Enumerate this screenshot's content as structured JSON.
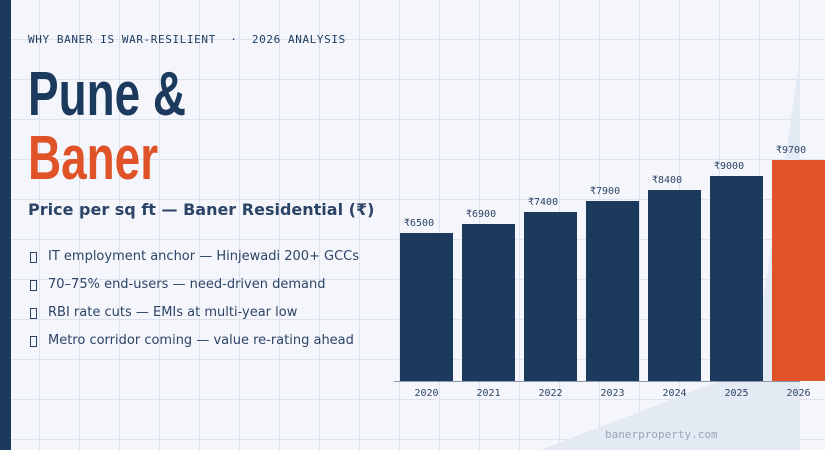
{
  "header": {
    "kicker": "WHY BANER IS WAR-RESILIENT  ·  2026 ANALYSIS",
    "title_line1": "Pune &",
    "title_line2": "Baner"
  },
  "subtitle": "Price per sq ft — Baner Residential (₹)",
  "bullets": [
    {
      "icon": "bullet-icon",
      "text": "IT employment anchor — Hinjewadi 200+ GCCs"
    },
    {
      "icon": "bullet-icon",
      "text": "70–75% end-users — need-driven demand"
    },
    {
      "icon": "bullet-icon",
      "text": "RBI rate cuts — EMIs at multi-year low"
    },
    {
      "icon": "bullet-icon",
      "text": "Metro corridor coming — value re-rating ahead"
    }
  ],
  "footer": "banerproperty.com",
  "colors": {
    "primary": "#1b3a5e",
    "accent": "#e05227",
    "background": "#f5f6fb"
  },
  "chart_data": {
    "type": "bar",
    "categories": [
      "2020",
      "2021",
      "2022",
      "2023",
      "2024",
      "2025",
      "2026"
    ],
    "values": [
      6500,
      6900,
      7400,
      7900,
      8400,
      9000,
      9700
    ],
    "value_labels": [
      "₹6500",
      "₹6900",
      "₹7400",
      "₹7900",
      "₹8400",
      "₹9000",
      "₹9700"
    ],
    "highlight": "2026",
    "ylim": [
      0,
      9700
    ]
  }
}
